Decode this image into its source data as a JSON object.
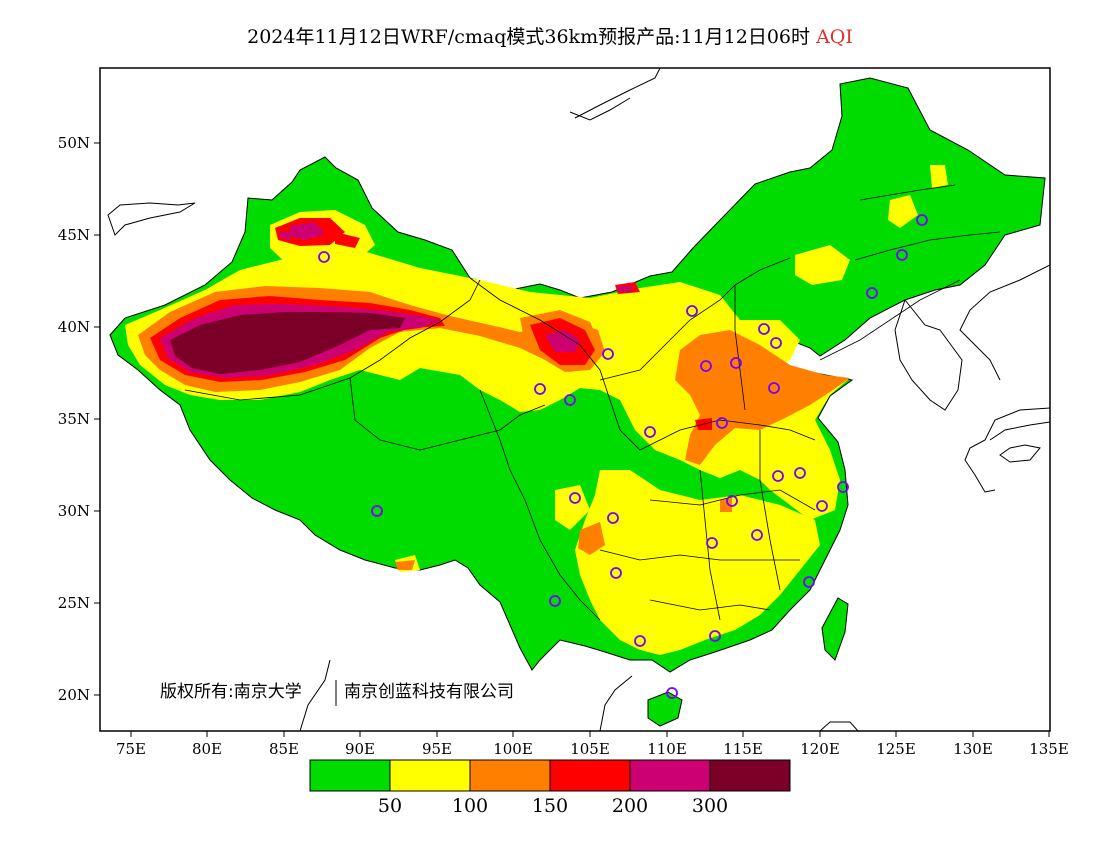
{
  "header": {
    "title_main": "2024年11月12日WRF/cmaq模式36km预报产品:11月12日06时",
    "title_var": "AQI"
  },
  "axes": {
    "lat_labels": [
      "50N",
      "45N",
      "40N",
      "35N",
      "30N",
      "25N",
      "20N"
    ],
    "lon_labels": [
      "75E",
      "80E",
      "85E",
      "90E",
      "95E",
      "100E",
      "105E",
      "110E",
      "115E",
      "120E",
      "125E",
      "130E",
      "135E"
    ]
  },
  "legend": {
    "colors": [
      "#00dc00",
      "#ffff00",
      "#ff8000",
      "#ff0000",
      "#cc0070",
      "#7a0028"
    ],
    "labels": [
      "50",
      "100",
      "150",
      "200",
      "300"
    ]
  },
  "copyright": {
    "part1": "版权所有:南京大学",
    "part2": "南京创蓝科技有限公司"
  },
  "colors": {
    "good": "#00dc00",
    "moderate": "#ffff00",
    "usg": "#ff8000",
    "unhealthy": "#ff0000",
    "very_unhealthy": "#cc0070",
    "hazardous": "#7a0028",
    "station_marker": "#7a00ff"
  }
}
